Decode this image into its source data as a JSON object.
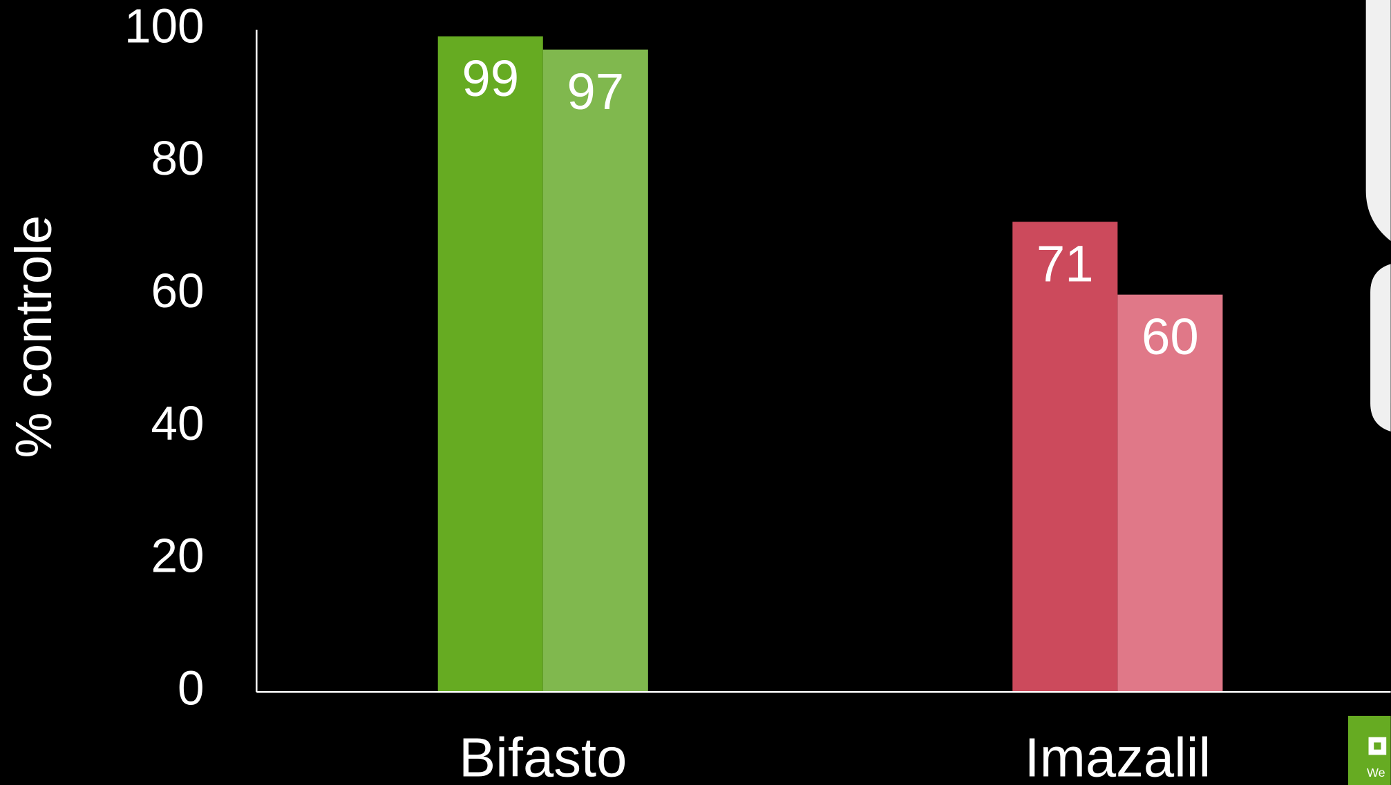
{
  "chart_data": {
    "type": "bar",
    "y_axis_label": "% controle",
    "categories": [
      "Bifasto",
      "Imazalil"
    ],
    "series": [
      {
        "colors": [
          "#66ab22",
          "#cc4a5c"
        ],
        "values": [
          99,
          71
        ]
      },
      {
        "colors": [
          "#80b84e",
          "#e07888"
        ],
        "values": [
          97,
          60
        ]
      }
    ],
    "ylim": [
      0,
      100
    ],
    "yticks": [
      0,
      20,
      40,
      60,
      80,
      100
    ],
    "grid": false
  },
  "side_panel": {
    "text": "We"
  }
}
